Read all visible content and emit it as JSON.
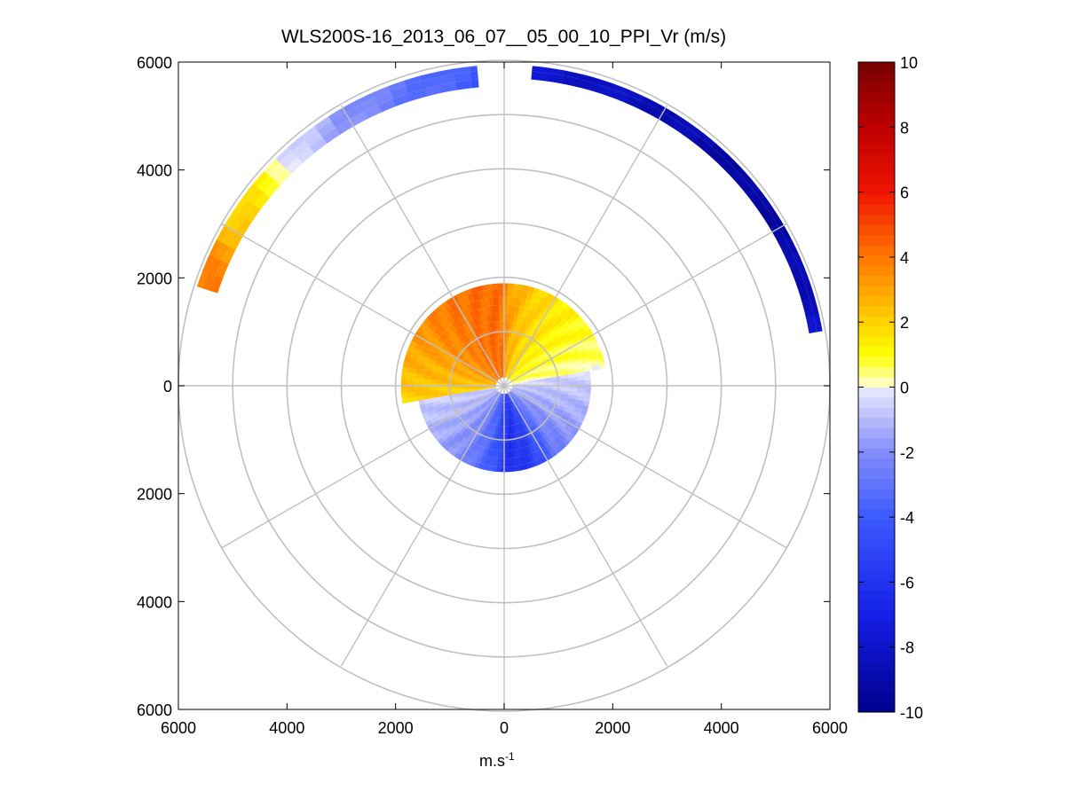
{
  "chart_data": {
    "type": "heatmap",
    "subtype": "polar-ppi",
    "title": "WLS200S-16_2013_06_07__05_00_10_PPI_Vr (m/s)",
    "xlabel": "m.s",
    "xlabel_sup": "-1",
    "ylabel": "",
    "xlim": [
      -6000,
      6000
    ],
    "ylim": [
      -6000,
      6000
    ],
    "xtick_labels": [
      "6000",
      "4000",
      "2000",
      "0",
      "2000",
      "4000",
      "6000"
    ],
    "ytick_labels": [
      "6000",
      "4000",
      "2000",
      "0",
      "2000",
      "4000",
      "6000"
    ],
    "xtick_values": [
      -6000,
      -4000,
      -2000,
      0,
      2000,
      4000,
      6000
    ],
    "ytick_values": [
      6000,
      4000,
      2000,
      0,
      -2000,
      -4000,
      -6000
    ],
    "polar_grid": {
      "rings": [
        1000,
        2000,
        3000,
        4000,
        5000,
        6000
      ],
      "spokes_deg": [
        0,
        30,
        60,
        90,
        120,
        150,
        180,
        210,
        240,
        270,
        300,
        330
      ]
    },
    "colorbar": {
      "min": -10,
      "max": 10,
      "ticks": [
        10,
        8,
        6,
        4,
        2,
        0,
        -2,
        -4,
        -6,
        -8,
        -10
      ],
      "tick_labels": [
        "10",
        "8",
        "6",
        "4",
        "2",
        "0",
        "-2",
        "-4",
        "-6",
        "-8",
        "-10"
      ]
    },
    "regions": [
      {
        "name": "near-field-north",
        "r_min": 150,
        "r_max": 1900,
        "az_min": -100,
        "az_max": 80,
        "values_by_azimuth_deg": [
          [
            -100,
            2.0
          ],
          [
            -80,
            2.6
          ],
          [
            -60,
            3.3
          ],
          [
            -40,
            3.9
          ],
          [
            -20,
            4.2
          ],
          [
            -5,
            4.3
          ],
          [
            5,
            3.0
          ],
          [
            20,
            2.0
          ],
          [
            40,
            1.3
          ],
          [
            60,
            0.8
          ],
          [
            80,
            0.3
          ]
        ]
      },
      {
        "name": "near-field-south",
        "r_min": 150,
        "r_max": 1600,
        "az_min": 80,
        "az_max": 260,
        "values_by_azimuth_deg": [
          [
            80,
            -0.4
          ],
          [
            100,
            -1.0
          ],
          [
            120,
            -1.6
          ],
          [
            140,
            -2.6
          ],
          [
            160,
            -5.5
          ],
          [
            175,
            -6.2
          ],
          [
            190,
            -4.0
          ],
          [
            210,
            -2.2
          ],
          [
            230,
            -1.4
          ],
          [
            260,
            -0.6
          ]
        ]
      },
      {
        "name": "far-field-arc-north-east",
        "r_min": 5700,
        "r_max": 5950,
        "az_min": 5,
        "az_max": 80,
        "values_by_azimuth_deg": [
          [
            5,
            -7.8
          ],
          [
            20,
            -8.3
          ],
          [
            35,
            -8.8
          ],
          [
            50,
            -9.3
          ],
          [
            65,
            -9.0
          ],
          [
            80,
            -8.0
          ]
        ]
      },
      {
        "name": "far-field-arc-north-west",
        "r_min": 5550,
        "r_max": 5950,
        "az_min": -72,
        "az_max": -5,
        "values_by_azimuth_deg": [
          [
            -72,
            3.8
          ],
          [
            -65,
            3.4
          ],
          [
            -55,
            1.6
          ],
          [
            -48,
            1.0
          ],
          [
            -42,
            -0.6
          ],
          [
            -35,
            -1.2
          ],
          [
            -25,
            -2.4
          ],
          [
            -15,
            -3.2
          ],
          [
            -5,
            -4.2
          ]
        ]
      }
    ]
  },
  "colors": {
    "grid": "#c0c0c0",
    "axis": "#000000",
    "background": "#ffffff"
  }
}
